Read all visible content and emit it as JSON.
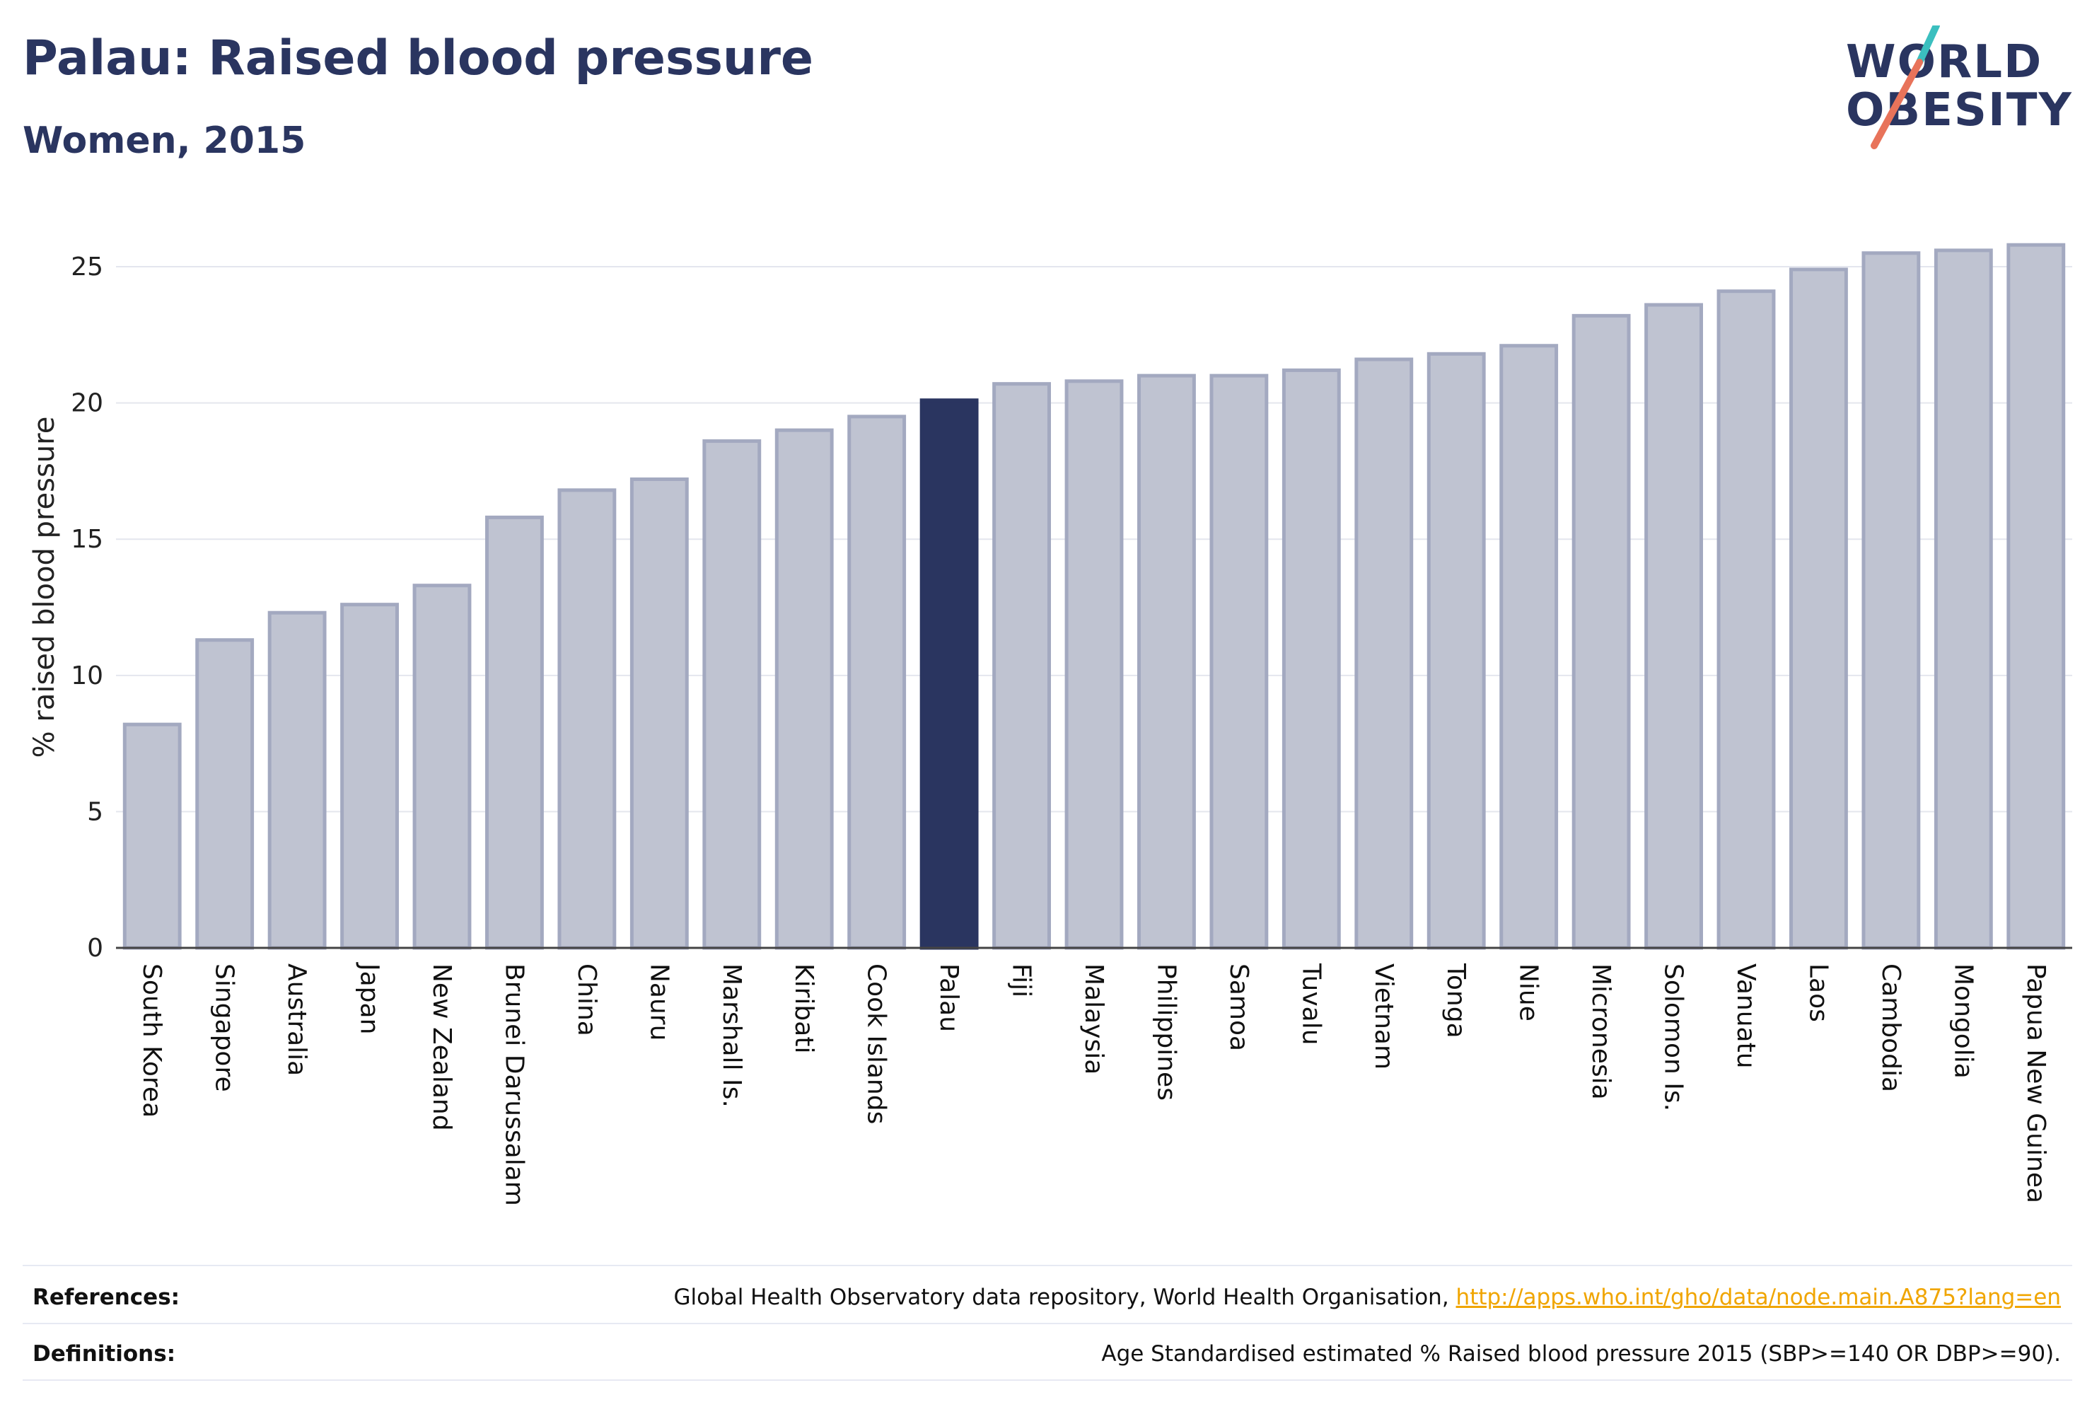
{
  "header": {
    "title": "Palau: Raised blood pressure",
    "subtitle": "Women, 2015"
  },
  "logo": {
    "line1": "WORLD",
    "line2": "OBESITY",
    "accent_teal": "#3bbfbf",
    "accent_coral": "#e8735a"
  },
  "colors": {
    "bar": "#bfc3d1",
    "bar_border": "#a3a9c0",
    "highlight": "#2a3560",
    "text": "#2a3560",
    "link": "#f0a500"
  },
  "chart_data": {
    "type": "bar",
    "ylabel": "% raised blood pressure",
    "ylim": [
      0,
      27
    ],
    "yticks": [
      0,
      5,
      10,
      15,
      20,
      25
    ],
    "highlight": "Palau",
    "categories": [
      "South Korea",
      "Singapore",
      "Australia",
      "Japan",
      "New Zealand",
      "Brunei Darussalam",
      "China",
      "Nauru",
      "Marshall Is.",
      "Kiribati",
      "Cook Islands",
      "Palau",
      "Fiji",
      "Malaysia",
      "Philippines",
      "Samoa",
      "Tuvalu",
      "Vietnam",
      "Tonga",
      "Niue",
      "Micronesia",
      "Solomon Is.",
      "Vanuatu",
      "Laos",
      "Cambodia",
      "Mongolia",
      "Papua New Guinea"
    ],
    "values": [
      8.2,
      11.3,
      12.3,
      12.6,
      13.3,
      15.8,
      16.8,
      17.2,
      18.6,
      19.0,
      19.5,
      20.1,
      20.7,
      20.8,
      21.0,
      21.0,
      21.2,
      21.6,
      21.8,
      22.1,
      23.2,
      23.6,
      24.1,
      24.9,
      25.5,
      25.6,
      25.8
    ]
  },
  "footer": {
    "references_label": "References:",
    "references_text": "Global Health Observatory data repository, World Health Organisation, ",
    "references_link": "http://apps.who.int/gho/data/node.main.A875?lang=en",
    "definitions_label": "Definitions:",
    "definitions_text": "Age Standardised estimated % Raised blood pressure 2015 (SBP>=140 OR DBP>=90)."
  }
}
